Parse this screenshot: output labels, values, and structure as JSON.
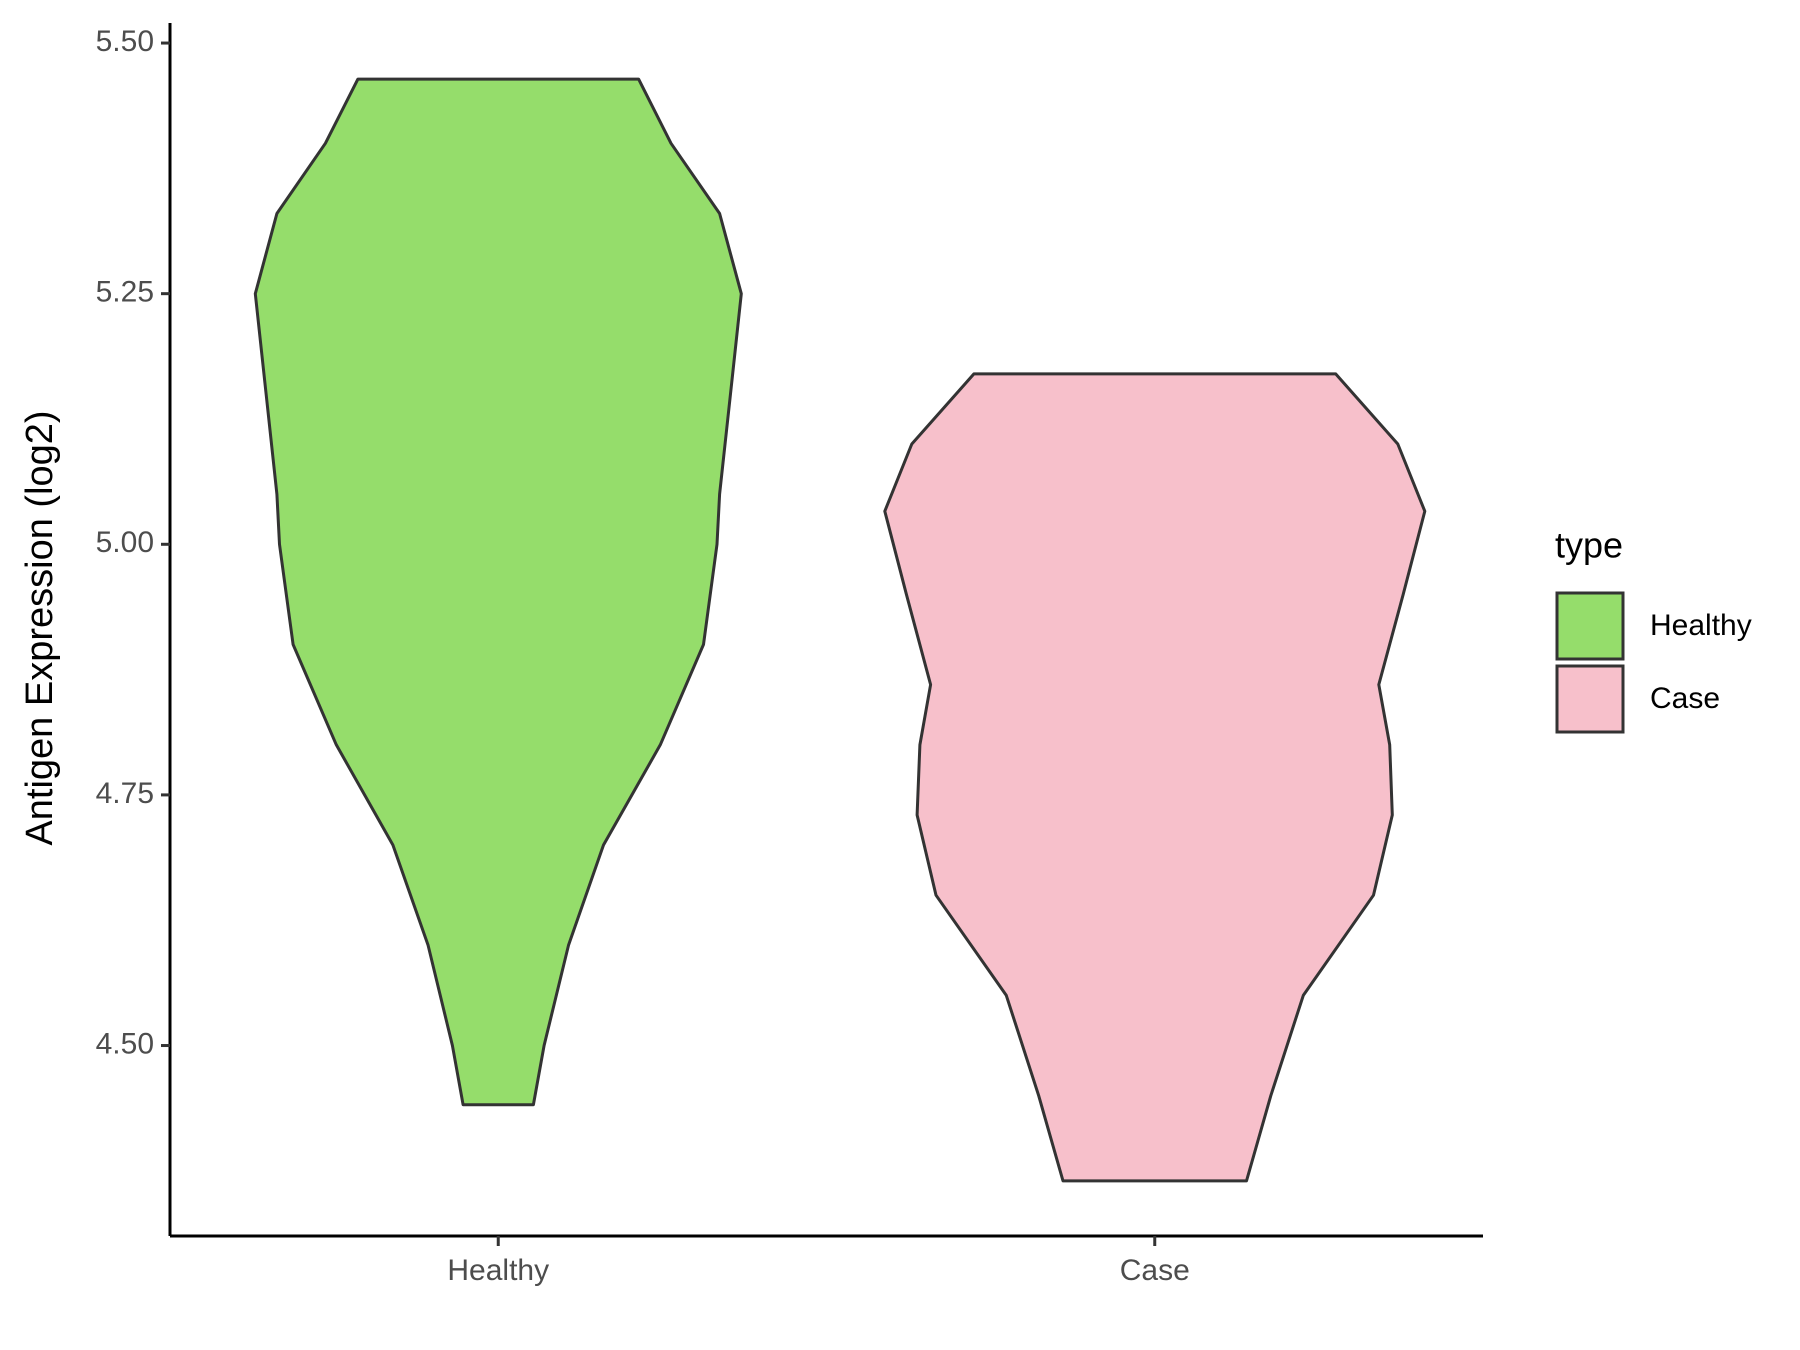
{
  "chart_data": {
    "type": "violin",
    "y_label": "Antigen Expression (log2)",
    "categories": [
      "Healthy",
      "Case"
    ],
    "ylim": [
      4.31,
      5.52
    ],
    "yticks": [
      {
        "value": 4.5,
        "label": "4.50"
      },
      {
        "value": 4.75,
        "label": "4.75"
      },
      {
        "value": 5.0,
        "label": "5.00"
      },
      {
        "value": 5.25,
        "label": "5.25"
      },
      {
        "value": 5.5,
        "label": "5.50"
      }
    ],
    "legend_title": "type",
    "series": [
      {
        "name": "Healthy",
        "color": "#95dd6b",
        "y": [
          4.441,
          4.5,
          4.6,
          4.7,
          4.8,
          4.9,
          5.0,
          5.05,
          5.15,
          5.25,
          5.33,
          5.4,
          5.464
        ],
        "width": [
          0.13,
          0.17,
          0.26,
          0.39,
          0.6,
          0.76,
          0.81,
          0.82,
          0.86,
          0.9,
          0.82,
          0.64,
          0.52
        ]
      },
      {
        "name": "Case",
        "color": "#f7c0cb",
        "y": [
          4.365,
          4.45,
          4.55,
          4.65,
          4.73,
          4.8,
          4.86,
          4.95,
          5.033,
          5.1,
          5.17
        ],
        "width": [
          0.34,
          0.43,
          0.55,
          0.81,
          0.88,
          0.87,
          0.83,
          0.92,
          1.0,
          0.9,
          0.67
        ]
      }
    ]
  }
}
